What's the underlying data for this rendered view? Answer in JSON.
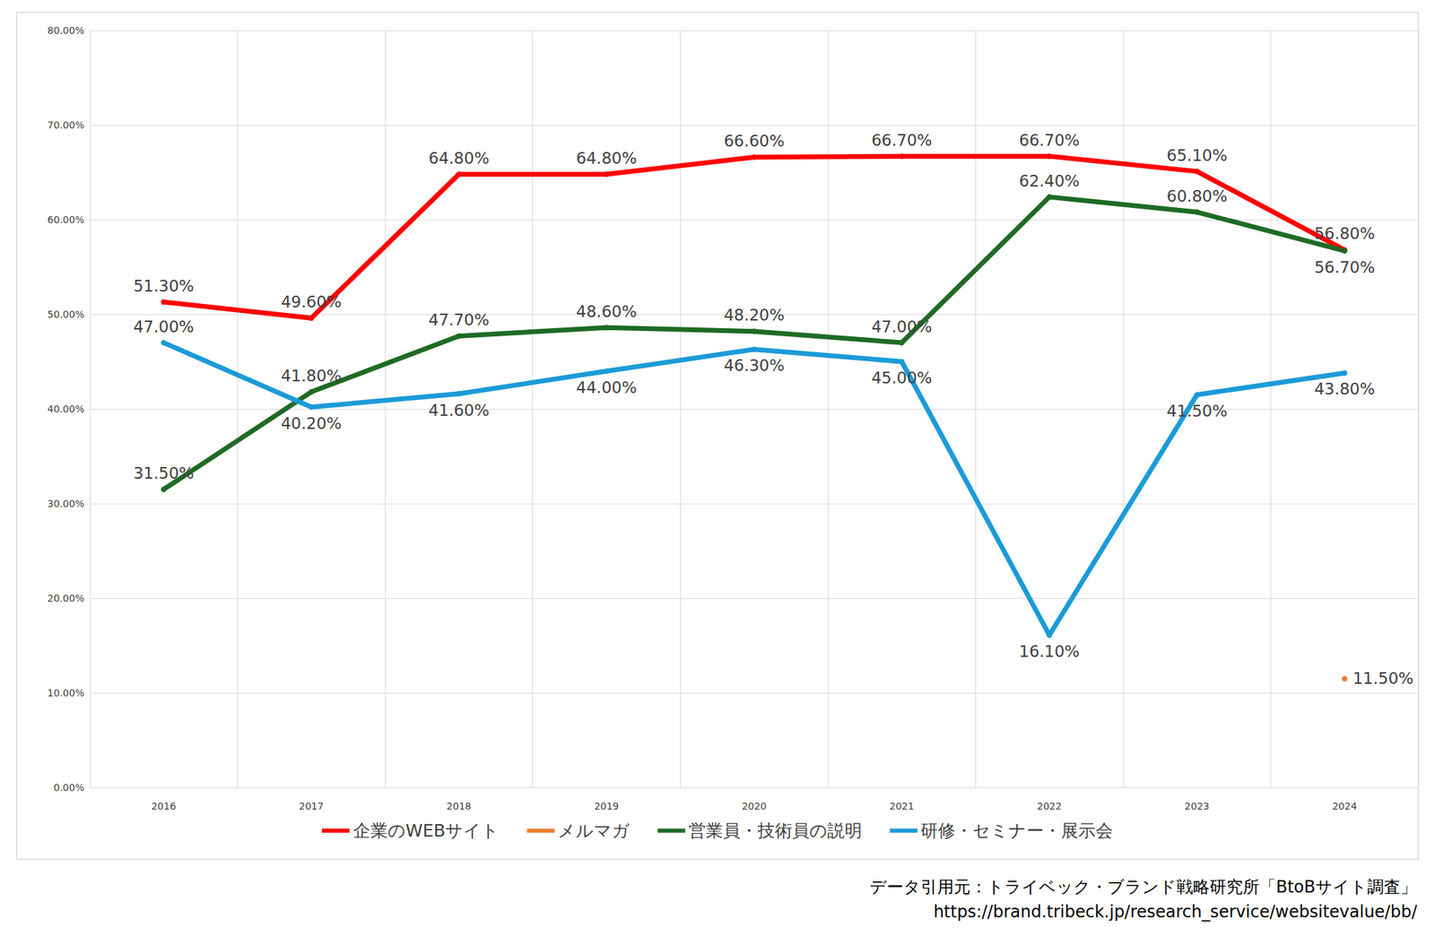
{
  "chart_data": {
    "type": "line",
    "categories": [
      "2016",
      "2017",
      "2018",
      "2019",
      "2020",
      "2021",
      "2022",
      "2023",
      "2024"
    ],
    "series": [
      {
        "name": "企業のWEBサイト",
        "color": "#ff0000",
        "values": [
          51.3,
          49.6,
          64.8,
          64.8,
          66.6,
          66.7,
          66.7,
          65.1,
          56.8
        ],
        "value_labels": [
          "51.30%",
          "49.60%",
          "64.80%",
          "64.80%",
          "66.60%",
          "66.70%",
          "66.70%",
          "65.10%",
          "56.80%"
        ]
      },
      {
        "name": "メルマガ",
        "color": "#ed7d31",
        "values": [
          null,
          null,
          null,
          null,
          null,
          null,
          null,
          null,
          11.5
        ],
        "value_labels": [
          null,
          null,
          null,
          null,
          null,
          null,
          null,
          null,
          "11.50%"
        ]
      },
      {
        "name": "営業員・技術員の説明",
        "color": "#1e6b24",
        "values": [
          31.5,
          41.8,
          47.7,
          48.6,
          48.2,
          47.0,
          62.4,
          60.8,
          56.7
        ],
        "value_labels": [
          "31.50%",
          "41.80%",
          "47.70%",
          "48.60%",
          "48.20%",
          "47.00%",
          "62.40%",
          "60.80%",
          "56.70%"
        ]
      },
      {
        "name": "研修・セミナー・展示会",
        "color": "#1b9bd7",
        "values": [
          47.0,
          40.2,
          41.6,
          44.0,
          46.3,
          45.0,
          16.1,
          41.5,
          43.8
        ],
        "value_labels": [
          "47.00%",
          "40.20%",
          "41.60%",
          "44.00%",
          "46.30%",
          "45.00%",
          "16.10%",
          "41.50%",
          "43.80%"
        ]
      }
    ],
    "ylim": [
      0,
      80
    ],
    "yticks": [
      {
        "value": 0,
        "label": "0.00%"
      },
      {
        "value": 10,
        "label": "10.00%"
      },
      {
        "value": 20,
        "label": "20.00%"
      },
      {
        "value": 30,
        "label": "30.00%"
      },
      {
        "value": 40,
        "label": "40.00%"
      },
      {
        "value": 50,
        "label": "50.00%"
      },
      {
        "value": 60,
        "label": "60.00%"
      },
      {
        "value": 70,
        "label": "70.00%"
      },
      {
        "value": 80,
        "label": "80.00%"
      }
    ],
    "grid": true,
    "legend": "bottom",
    "data_labels": true,
    "marker": "circle",
    "annotations": [
      "データ引用元：トライベック・ブランド戦略研究所「BtoBサイト調査」",
      "https://brand.tribeck.jp/research_service/websitevalue/bb/"
    ]
  }
}
